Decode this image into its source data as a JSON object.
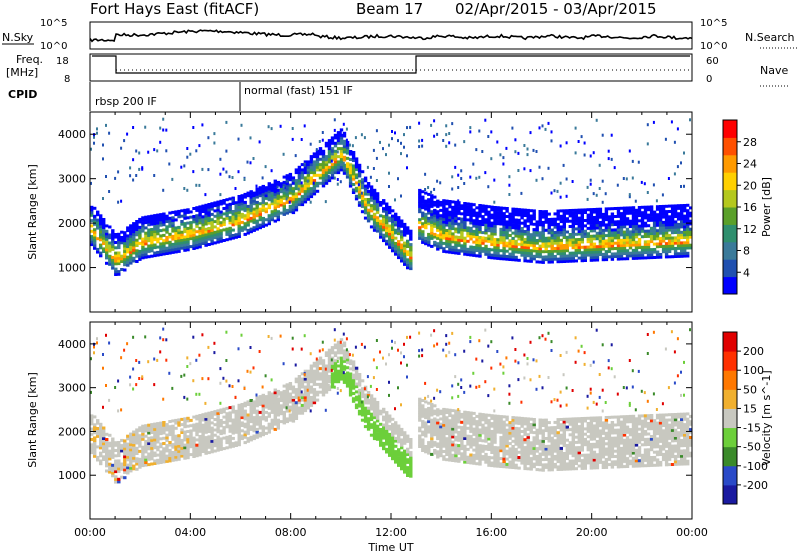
{
  "header": {
    "station": "Fort Hays East (fitACF)",
    "beam": "Beam 17",
    "date_range": "02/Apr/2015 - 03/Apr/2015"
  },
  "status_panel": {
    "nsky_label": "N.Sky",
    "nsearch_label": "N.Search",
    "freq_label_1": "Freq.",
    "freq_label_2": "[MHz]",
    "nave_label": "Nave",
    "cpid_label": "CPID",
    "noise_ticks": [
      "10^5",
      "10^0"
    ],
    "freq_ticks": [
      "18",
      "8"
    ],
    "nave_ticks": [
      "60",
      "0"
    ],
    "cpid_segments": [
      {
        "label": "rbsp 200 IF",
        "start_hour": 0
      },
      {
        "label": "normal (fast) 151 IF",
        "start_hour": 6
      }
    ]
  },
  "chart_data": [
    {
      "type": "heatmap",
      "title": "Power",
      "ylabel": "Slant Range [km]",
      "xlabel": "Time UT",
      "colorbar_label": "Power [dB]",
      "colorbar_ticks": [
        "28",
        "24",
        "20",
        "16",
        "12",
        "8",
        "4"
      ],
      "colors": [
        "#0000ff",
        "#2050b0",
        "#3a7a9a",
        "#2f8f6e",
        "#5aa02a",
        "#b4c81e",
        "#ffd000",
        "#ff9a00",
        "#ff5000",
        "#ff0000"
      ],
      "ylim": [
        0,
        4500
      ],
      "yticks": [
        "1000",
        "2000",
        "3000",
        "4000"
      ],
      "xticks": [
        "00:00",
        "04:00",
        "08:00",
        "12:00",
        "16:00",
        "20:00",
        "00:00"
      ],
      "bands": [
        {
          "t": [
            0,
            1,
            2,
            4,
            6,
            8,
            10,
            11,
            12.8
          ],
          "r": [
            1800,
            1100,
            1500,
            1700,
            2000,
            2500,
            3500,
            2300,
            1150
          ]
        },
        {
          "t": [
            13,
            14,
            16,
            18,
            20,
            22,
            24
          ],
          "r": [
            1900,
            1650,
            1500,
            1400,
            1450,
            1500,
            1550
          ]
        }
      ]
    },
    {
      "type": "heatmap",
      "title": "Velocity",
      "ylabel": "Slant Range [km]",
      "xlabel": "Time UT",
      "colorbar_label": "Velocity [m s^-1]",
      "colorbar_ticks": [
        "200",
        "100",
        "50",
        "15",
        "-15",
        "-50",
        "-100",
        "-200"
      ],
      "colors": [
        "#1a1aa0",
        "#2a4ac8",
        "#3a8a2a",
        "#6ccf3a",
        "#c8c8c0",
        "#f0b030",
        "#ff7800",
        "#ff3000",
        "#e00000"
      ],
      "ylim": [
        0,
        4500
      ],
      "yticks": [
        "1000",
        "2000",
        "3000",
        "4000"
      ],
      "xticks": [
        "00:00",
        "04:00",
        "08:00",
        "12:00",
        "16:00",
        "20:00",
        "00:00"
      ]
    }
  ]
}
